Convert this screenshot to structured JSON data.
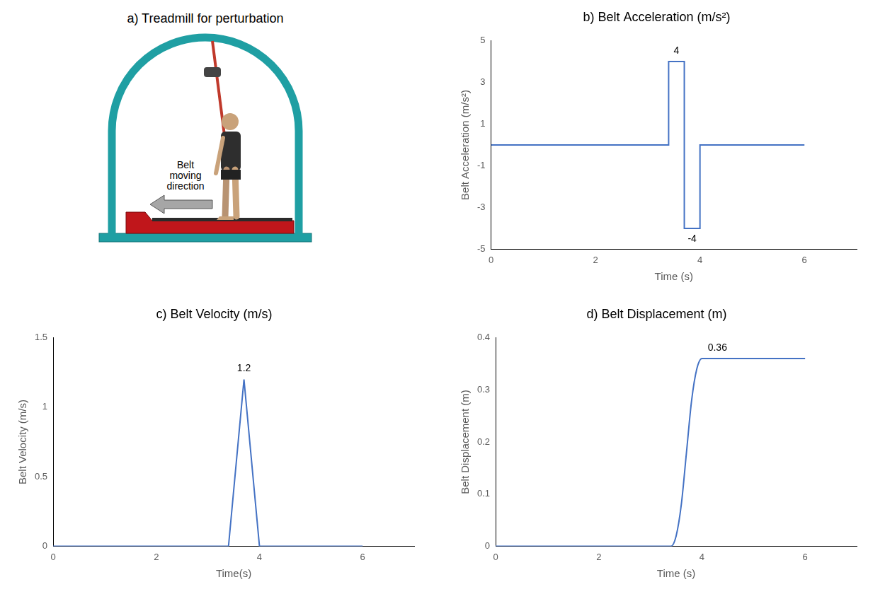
{
  "diagram": {
    "title": "a) Treadmill for perturbation",
    "arrow_label": "Belt moving direction"
  },
  "chart_data": [
    {
      "type": "line",
      "title": "b) Belt Acceleration (m/s²)",
      "x_label": "Time (s)",
      "y_label": "Belt Acceleration (m/s²)",
      "x": [
        0,
        3.4,
        3.4,
        3.7,
        3.7,
        4,
        4,
        6
      ],
      "values": [
        0,
        0,
        4,
        4,
        -4,
        -4,
        0,
        0
      ],
      "color": "#4472c4",
      "xlim": [
        0,
        7
      ],
      "xticks": [
        0,
        2,
        4,
        6
      ],
      "ylim": [
        -5,
        5
      ],
      "yticks": [
        -5,
        -3,
        -1,
        1,
        3,
        5
      ],
      "grid": false,
      "annotations": [
        {
          "x": 3.55,
          "y": 4,
          "text": "4"
        },
        {
          "x": 3.85,
          "y": -4,
          "text": "-4"
        }
      ]
    },
    {
      "type": "line",
      "title": "c) Belt Velocity (m/s)",
      "x_label": "Time(s)",
      "y_label": "Belt Velocity (m/s)",
      "x": [
        0,
        3.4,
        3.7,
        4,
        6
      ],
      "values": [
        0,
        0,
        1.2,
        0,
        0
      ],
      "color": "#4472c4",
      "xlim": [
        0,
        7
      ],
      "xticks": [
        0,
        2,
        4,
        6
      ],
      "ylim": [
        0,
        1.5
      ],
      "yticks": [
        0,
        0.5,
        1,
        1.5
      ],
      "grid": false,
      "annotations": [
        {
          "x": 3.7,
          "y": 1.2,
          "text": "1.2"
        }
      ]
    },
    {
      "type": "line",
      "title": "d) Belt Displacement (m)",
      "x_label": "Time (s)",
      "y_label": "Belt Displacement (m)",
      "x": [
        0,
        3.4,
        3.5,
        3.6,
        3.7,
        3.8,
        3.9,
        4,
        6
      ],
      "values": [
        0,
        0,
        0.02,
        0.08,
        0.18,
        0.28,
        0.34,
        0.36,
        0.36
      ],
      "color": "#4472c4",
      "line_style": "smooth",
      "xlim": [
        0,
        7
      ],
      "xticks": [
        0,
        2,
        4,
        6
      ],
      "ylim": [
        0,
        0.4
      ],
      "yticks": [
        0,
        0.1,
        0.2,
        0.3,
        0.4
      ],
      "grid": false,
      "annotations": [
        {
          "x": 4.3,
          "y": 0.36,
          "text": "0.36"
        }
      ]
    }
  ]
}
